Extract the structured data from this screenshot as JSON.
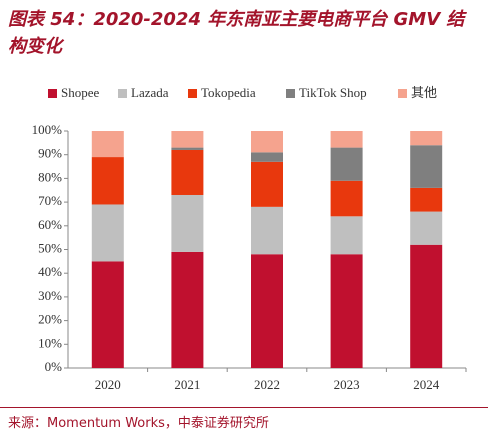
{
  "chart_data": {
    "type": "stacked_bar",
    "title": "图表 54：2020-2024 年东南亚主要电商平台 GMV 结构变化",
    "source": "来源：Momentum Works，中泰证券研究所",
    "categories": [
      "2020",
      "2021",
      "2022",
      "2023",
      "2024"
    ],
    "series": [
      {
        "name": "Shopee",
        "color": "#c0102f",
        "values": [
          45,
          49,
          48,
          48,
          52
        ]
      },
      {
        "name": "Lazada",
        "color": "#bfbfbf",
        "values": [
          24,
          24,
          20,
          16,
          14
        ]
      },
      {
        "name": "Tokopedia",
        "color": "#e8380d",
        "values": [
          20,
          19,
          19,
          15,
          10
        ]
      },
      {
        "name": "TikTok Shop",
        "color": "#7f7f7f",
        "values": [
          0,
          1,
          4,
          14,
          18
        ]
      },
      {
        "name": "其他",
        "color": "#f5a38e",
        "values": [
          11,
          7,
          9,
          7,
          6
        ]
      }
    ],
    "ylim": [
      0,
      100
    ],
    "yticks": [
      {
        "value": 0,
        "label": "0%"
      },
      {
        "value": 10,
        "label": "10%"
      },
      {
        "value": 20,
        "label": "20%"
      },
      {
        "value": 30,
        "label": "30%"
      },
      {
        "value": 40,
        "label": "40%"
      },
      {
        "value": 50,
        "label": "50%"
      },
      {
        "value": 60,
        "label": "60%"
      },
      {
        "value": 70,
        "label": "70%"
      },
      {
        "value": 80,
        "label": "80%"
      },
      {
        "value": 90,
        "label": "90%"
      },
      {
        "value": 100,
        "label": "100%"
      }
    ],
    "grid": false
  }
}
